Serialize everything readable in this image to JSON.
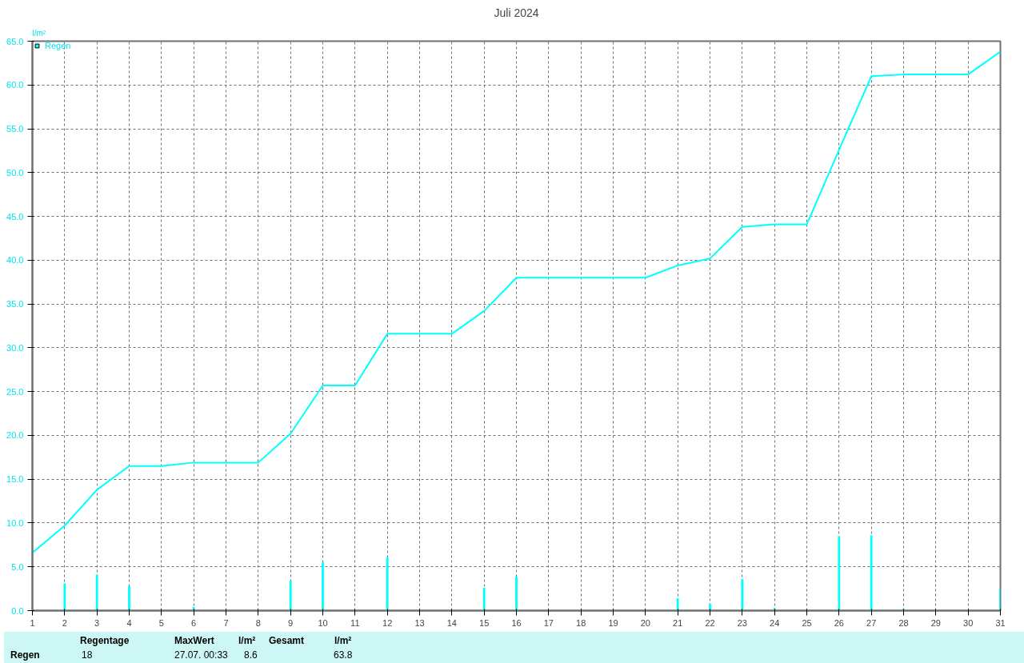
{
  "chart_data": {
    "type": "line",
    "title": "Juli 2024",
    "ylabel": "l/m²",
    "x": [
      1,
      2,
      3,
      4,
      5,
      6,
      7,
      8,
      9,
      10,
      11,
      12,
      13,
      14,
      15,
      16,
      17,
      18,
      19,
      20,
      21,
      22,
      23,
      24,
      25,
      26,
      27,
      28,
      29,
      30,
      31
    ],
    "series": [
      {
        "name": "Regen",
        "color": "#00ffff",
        "values": [
          6.6,
          9.7,
          13.8,
          16.5,
          16.5,
          16.9,
          16.9,
          16.9,
          20.2,
          25.7,
          25.7,
          31.6,
          31.6,
          31.6,
          34.2,
          38.0,
          38.0,
          38.0,
          38.0,
          38.0,
          39.4,
          40.2,
          43.8,
          44.1,
          44.1,
          52.6,
          61.0,
          61.2,
          61.2,
          61.2,
          63.8
        ]
      },
      {
        "type": "bar",
        "color": "#00ffff",
        "x": [
          2,
          3,
          4,
          6,
          9,
          10,
          12,
          15,
          16,
          21,
          22,
          23,
          24,
          26,
          27,
          28,
          31
        ],
        "values": [
          3.1,
          4.1,
          2.8,
          0.4,
          3.4,
          5.5,
          6.1,
          2.6,
          3.9,
          1.4,
          0.8,
          3.6,
          0.3,
          8.5,
          8.6,
          0.2,
          2.6
        ]
      }
    ],
    "xlim": [
      1,
      31
    ],
    "xticks": [
      1,
      2,
      3,
      4,
      5,
      6,
      7,
      8,
      9,
      10,
      11,
      12,
      13,
      14,
      15,
      16,
      17,
      18,
      19,
      20,
      21,
      22,
      23,
      24,
      25,
      26,
      27,
      28,
      29,
      30,
      31
    ],
    "ylim": [
      0,
      65
    ],
    "yticks": [
      {
        "value": 0,
        "label": "0.0"
      },
      {
        "value": 5,
        "label": "5.0"
      },
      {
        "value": 10,
        "label": "10.0"
      },
      {
        "value": 15,
        "label": "15.0"
      },
      {
        "value": 20,
        "label": "20.0"
      },
      {
        "value": 25,
        "label": "25.0"
      },
      {
        "value": 30,
        "label": "30.0"
      },
      {
        "value": 35,
        "label": "35.0"
      },
      {
        "value": 40,
        "label": "40.0"
      },
      {
        "value": 45,
        "label": "45.0"
      },
      {
        "value": 50,
        "label": "50.0"
      },
      {
        "value": 55,
        "label": "55.0"
      },
      {
        "value": 60,
        "label": "60.0"
      },
      {
        "value": 65,
        "label": "65.0"
      }
    ],
    "grid": true,
    "legend": "top left",
    "annotations": [
      "Regen",
      "Regentage",
      "18",
      "MaxWert",
      "l/m²",
      "27.07.  00:33",
      "8.6",
      "Gesamt",
      "l/m²",
      "63.8"
    ]
  }
}
